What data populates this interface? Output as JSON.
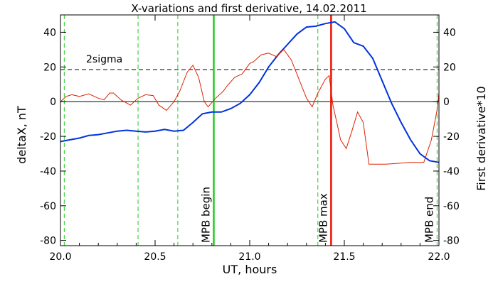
{
  "chart_data": {
    "type": "line",
    "title": "X-variations and first derivative, 14.02.2011",
    "xlabel": "UT, hours",
    "ylabel_left": "deltaX, nT",
    "ylabel_right": "First derivative*10",
    "xlim": [
      20.0,
      22.0
    ],
    "ylim": [
      -83,
      50
    ],
    "x_ticks": [
      "20.0",
      "20.5",
      "21.0",
      "21.5",
      "22.0"
    ],
    "x_tick_values": [
      20.0,
      20.5,
      21.0,
      21.5,
      22.0
    ],
    "y_ticks_left": [
      "-80",
      "-60",
      "-40",
      "-20",
      "0",
      "20",
      "40"
    ],
    "y_ticks_right": [
      "-80",
      "-60",
      "-40",
      "-20",
      "0",
      "20",
      "40"
    ],
    "y_tick_values": [
      -80,
      -60,
      -40,
      -20,
      0,
      20,
      40
    ],
    "threshold": {
      "label": "2sigma",
      "value": 18.5,
      "color": "#000000"
    },
    "zero_line": 0,
    "series": [
      {
        "key": "deltax",
        "color": "#0033dd",
        "points": [
          [
            20.0,
            -23
          ],
          [
            20.05,
            -22
          ],
          [
            20.1,
            -21
          ],
          [
            20.15,
            -19.5
          ],
          [
            20.2,
            -19
          ],
          [
            20.25,
            -18
          ],
          [
            20.3,
            -17
          ],
          [
            20.35,
            -16.5
          ],
          [
            20.4,
            -17
          ],
          [
            20.45,
            -17.5
          ],
          [
            20.5,
            -17
          ],
          [
            20.55,
            -16
          ],
          [
            20.6,
            -17
          ],
          [
            20.65,
            -16.5
          ],
          [
            20.7,
            -12
          ],
          [
            20.75,
            -7
          ],
          [
            20.8,
            -6
          ],
          [
            20.85,
            -6
          ],
          [
            20.9,
            -4
          ],
          [
            20.95,
            -1
          ],
          [
            21.0,
            4
          ],
          [
            21.05,
            11
          ],
          [
            21.1,
            20
          ],
          [
            21.15,
            27
          ],
          [
            21.2,
            33
          ],
          [
            21.25,
            39
          ],
          [
            21.3,
            43
          ],
          [
            21.35,
            43.5
          ],
          [
            21.4,
            45
          ],
          [
            21.45,
            46
          ],
          [
            21.5,
            42
          ],
          [
            21.55,
            34
          ],
          [
            21.6,
            32
          ],
          [
            21.65,
            25
          ],
          [
            21.7,
            12
          ],
          [
            21.75,
            -1
          ],
          [
            21.8,
            -12
          ],
          [
            21.85,
            -22
          ],
          [
            21.9,
            -30
          ],
          [
            21.95,
            -34
          ],
          [
            22.0,
            -35
          ]
        ]
      },
      {
        "key": "derivative",
        "color": "#dd2200",
        "points": [
          [
            20.0,
            0
          ],
          [
            20.03,
            3
          ],
          [
            20.06,
            4
          ],
          [
            20.1,
            3
          ],
          [
            20.15,
            4.5
          ],
          [
            20.2,
            2
          ],
          [
            20.23,
            1
          ],
          [
            20.26,
            5
          ],
          [
            20.28,
            5
          ],
          [
            20.32,
            1
          ],
          [
            20.37,
            -2
          ],
          [
            20.41,
            2
          ],
          [
            20.45,
            4
          ],
          [
            20.49,
            3.5
          ],
          [
            20.52,
            -2
          ],
          [
            20.56,
            -5
          ],
          [
            20.6,
            0
          ],
          [
            20.63,
            6
          ],
          [
            20.67,
            17
          ],
          [
            20.7,
            21
          ],
          [
            20.73,
            14
          ],
          [
            20.76,
            0
          ],
          [
            20.78,
            -3
          ],
          [
            20.82,
            2
          ],
          [
            20.86,
            6
          ],
          [
            20.88,
            9
          ],
          [
            20.92,
            14
          ],
          [
            20.96,
            16
          ],
          [
            21.0,
            22
          ],
          [
            21.02,
            23
          ],
          [
            21.06,
            27
          ],
          [
            21.1,
            28
          ],
          [
            21.14,
            26
          ],
          [
            21.18,
            30
          ],
          [
            21.22,
            24
          ],
          [
            21.26,
            13
          ],
          [
            21.3,
            2
          ],
          [
            21.33,
            -3
          ],
          [
            21.36,
            5
          ],
          [
            21.4,
            13
          ],
          [
            21.42,
            15
          ],
          [
            21.44,
            -2
          ],
          [
            21.46,
            -12
          ],
          [
            21.48,
            -22
          ],
          [
            21.51,
            -27
          ],
          [
            21.54,
            -17
          ],
          [
            21.57,
            -6
          ],
          [
            21.6,
            -12
          ],
          [
            21.63,
            -36
          ],
          [
            21.72,
            -36
          ],
          [
            21.85,
            -35
          ],
          [
            21.92,
            -35
          ],
          [
            21.96,
            -22
          ],
          [
            21.99,
            -5
          ],
          [
            22.0,
            5
          ]
        ]
      }
    ],
    "vertical_lines": [
      {
        "x": 20.02,
        "style": "dashed",
        "color": "#22cc22",
        "label": ""
      },
      {
        "x": 20.41,
        "style": "dashed",
        "color": "#22cc22",
        "label": ""
      },
      {
        "x": 20.62,
        "style": "dashed",
        "color": "#22cc22",
        "label": ""
      },
      {
        "x": 20.81,
        "style": "solid",
        "color": "#22cc22",
        "label": "MPB begin"
      },
      {
        "x": 21.36,
        "style": "dashed",
        "color": "#22cc22",
        "label": ""
      },
      {
        "x": 21.43,
        "style": "solid",
        "color": "#ee1100",
        "label": "MPB max"
      },
      {
        "x": 21.99,
        "style": "dashed",
        "color": "#22cc22",
        "label": "MPB end"
      }
    ],
    "left_axis_color": "#0033dd",
    "right_axis_color": "#dd2200"
  }
}
